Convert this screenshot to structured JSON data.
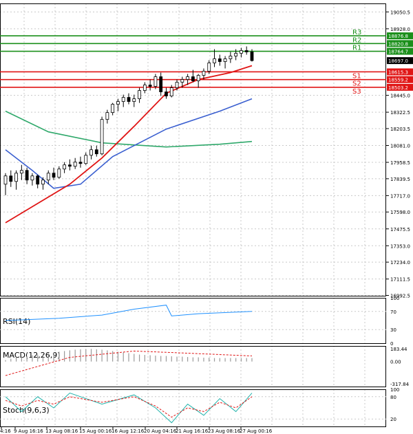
{
  "chart_data": {
    "type": "candlestick",
    "ylim": [
      16990.0,
      19112.0
    ],
    "y_ticks": [
      "19050.5",
      "18928.0",
      "18445.0",
      "18322.5",
      "18203.5",
      "18081.0",
      "17958.5",
      "17839.5",
      "17717.0",
      "17598.0",
      "17475.5",
      "17353.0",
      "17234.0",
      "17111.5",
      "16992.5"
    ],
    "x_ticks": [
      "4:16",
      "9 Aug 16:16",
      "13 Aug 08:16",
      "15 Aug 00:16",
      "16 Aug 12:16",
      "20 Aug 04:16",
      "21 Aug 16:16",
      "23 Aug 08:16",
      "27 Aug 00:16"
    ],
    "current_price": {
      "value": 18697.0,
      "label": "18697.0"
    },
    "levels": [
      {
        "name": "R3",
        "value": 18876.8,
        "label": "18876.8",
        "color": "#1a8f1a"
      },
      {
        "name": "R2",
        "value": 18820.8,
        "label": "18820.8",
        "color": "#1a8f1a"
      },
      {
        "name": "R1",
        "value": 18764.7,
        "label": "18764.7",
        "color": "#1a8f1a"
      },
      {
        "name": "S1",
        "value": 18615.3,
        "label": "18615.3",
        "color": "#e01515"
      },
      {
        "name": "S2",
        "value": 18559.2,
        "label": "18559.2",
        "color": "#e01515"
      },
      {
        "name": "S3",
        "value": 18503.2,
        "label": "18503.2",
        "color": "#e01515"
      }
    ],
    "candles": [
      [
        17800,
        17880,
        17720,
        17860
      ],
      [
        17860,
        17900,
        17780,
        17820
      ],
      [
        17820,
        17900,
        17760,
        17880
      ],
      [
        17880,
        17940,
        17830,
        17900
      ],
      [
        17900,
        17920,
        17800,
        17830
      ],
      [
        17830,
        17880,
        17790,
        17860
      ],
      [
        17860,
        17870,
        17770,
        17800
      ],
      [
        17800,
        17850,
        17760,
        17830
      ],
      [
        17830,
        17900,
        17800,
        17880
      ],
      [
        17880,
        17920,
        17830,
        17850
      ],
      [
        17850,
        17930,
        17840,
        17910
      ],
      [
        17910,
        17960,
        17880,
        17940
      ],
      [
        17940,
        17980,
        17900,
        17930
      ],
      [
        17930,
        17990,
        17910,
        17960
      ],
      [
        17960,
        18000,
        17920,
        17950
      ],
      [
        17950,
        18030,
        17940,
        18010
      ],
      [
        18010,
        18080,
        17980,
        18050
      ],
      [
        18050,
        18080,
        18000,
        18020
      ],
      [
        18020,
        18290,
        18010,
        18270
      ],
      [
        18270,
        18340,
        18240,
        18320
      ],
      [
        18320,
        18390,
        18300,
        18380
      ],
      [
        18380,
        18420,
        18330,
        18400
      ],
      [
        18400,
        18450,
        18360,
        18430
      ],
      [
        18430,
        18460,
        18380,
        18400
      ],
      [
        18400,
        18450,
        18360,
        18420
      ],
      [
        18420,
        18500,
        18390,
        18480
      ],
      [
        18480,
        18540,
        18460,
        18520
      ],
      [
        18520,
        18560,
        18480,
        18510
      ],
      [
        18510,
        18600,
        18490,
        18580
      ],
      [
        18580,
        18610,
        18440,
        18470
      ],
      [
        18470,
        18500,
        18420,
        18440
      ],
      [
        18440,
        18520,
        18430,
        18500
      ],
      [
        18500,
        18560,
        18480,
        18540
      ],
      [
        18540,
        18580,
        18500,
        18560
      ],
      [
        18560,
        18600,
        18520,
        18580
      ],
      [
        18580,
        18630,
        18540,
        18550
      ],
      [
        18550,
        18600,
        18500,
        18590
      ],
      [
        18590,
        18640,
        18560,
        18620
      ],
      [
        18620,
        18700,
        18600,
        18680
      ],
      [
        18680,
        18780,
        18650,
        18710
      ],
      [
        18710,
        18740,
        18660,
        18690
      ],
      [
        18690,
        18730,
        18640,
        18710
      ],
      [
        18710,
        18760,
        18680,
        18730
      ],
      [
        18730,
        18780,
        18700,
        18750
      ],
      [
        18750,
        18790,
        18720,
        18770
      ],
      [
        18770,
        18800,
        18740,
        18760
      ],
      [
        18760,
        18780,
        18690,
        18697
      ]
    ],
    "ma_fast": [
      [
        0,
        17520
      ],
      [
        12,
        17800
      ],
      [
        18,
        17990
      ],
      [
        24,
        18220
      ],
      [
        30,
        18460
      ],
      [
        36,
        18560
      ],
      [
        42,
        18610
      ],
      [
        46,
        18660
      ]
    ],
    "ma_mid": [
      [
        0,
        18050
      ],
      [
        5,
        17900
      ],
      [
        9,
        17770
      ],
      [
        14,
        17800
      ],
      [
        20,
        18000
      ],
      [
        30,
        18200
      ],
      [
        40,
        18330
      ],
      [
        46,
        18420
      ]
    ],
    "ma_slow": [
      [
        0,
        18330
      ],
      [
        8,
        18180
      ],
      [
        18,
        18100
      ],
      [
        30,
        18070
      ],
      [
        40,
        18090
      ],
      [
        46,
        18110
      ]
    ],
    "rsi": {
      "label": "RSI(14)",
      "ylim": [
        0,
        100
      ],
      "y_ticks": [
        "100",
        "70",
        "30",
        "0"
      ],
      "values": [
        [
          0,
          50
        ],
        [
          10,
          55
        ],
        [
          18,
          62
        ],
        [
          24,
          75
        ],
        [
          30,
          84
        ],
        [
          31,
          60
        ],
        [
          36,
          65
        ],
        [
          42,
          68
        ],
        [
          46,
          70
        ]
      ]
    },
    "macd": {
      "label": "MACD(12,26,9)",
      "y_ticks": [
        "183.44",
        "0.00",
        "-317.84"
      ],
      "hist": [
        20,
        40,
        60,
        70,
        80,
        90,
        100,
        110,
        120,
        130,
        140,
        150,
        160,
        170,
        175,
        180,
        180,
        175,
        170,
        160,
        150,
        140,
        130,
        120,
        110,
        100,
        95,
        90,
        85,
        80,
        80,
        75,
        70,
        70,
        65,
        60,
        60,
        55,
        55,
        50,
        50,
        50,
        50,
        50,
        50,
        50,
        50
      ],
      "signal": [
        [
          0,
          -200
        ],
        [
          12,
          60
        ],
        [
          24,
          150
        ],
        [
          34,
          120
        ],
        [
          46,
          80
        ]
      ]
    },
    "stoch": {
      "label": "Stoch(9,6,3)",
      "y_ticks": [
        "100",
        "80",
        "20"
      ],
      "k": [
        [
          0,
          80
        ],
        [
          3,
          40
        ],
        [
          6,
          80
        ],
        [
          9,
          50
        ],
        [
          12,
          90
        ],
        [
          18,
          60
        ],
        [
          24,
          85
        ],
        [
          28,
          50
        ],
        [
          31,
          10
        ],
        [
          34,
          60
        ],
        [
          37,
          30
        ],
        [
          40,
          75
        ],
        [
          43,
          40
        ],
        [
          46,
          90
        ]
      ],
      "d": [
        [
          0,
          70
        ],
        [
          3,
          55
        ],
        [
          6,
          70
        ],
        [
          9,
          60
        ],
        [
          12,
          80
        ],
        [
          18,
          65
        ],
        [
          24,
          80
        ],
        [
          28,
          55
        ],
        [
          31,
          25
        ],
        [
          34,
          50
        ],
        [
          37,
          40
        ],
        [
          40,
          65
        ],
        [
          43,
          50
        ],
        [
          46,
          80
        ]
      ]
    }
  }
}
